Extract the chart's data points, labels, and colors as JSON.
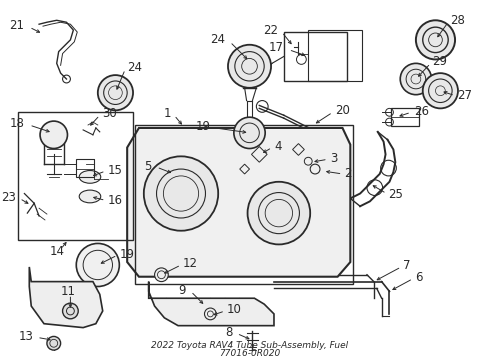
{
  "title_line1": "2022 Toyota RAV4 Tube Sub-Assembly, Fuel",
  "title_line2": "77016-0R020",
  "bg_color": "#ffffff",
  "line_color": "#2a2a2a",
  "fig_width": 4.9,
  "fig_height": 3.6,
  "dpi": 100
}
